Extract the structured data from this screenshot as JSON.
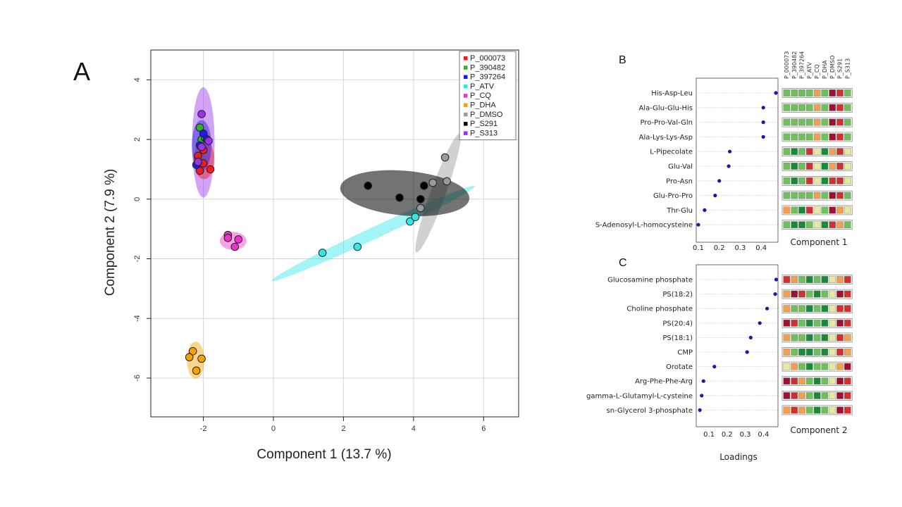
{
  "panels": {
    "a": "A",
    "b": "B",
    "c": "C"
  },
  "colors": {
    "P_000073": "#ee1c1c",
    "P_390482": "#2db32d",
    "P_397264": "#1c1cee",
    "P_ATV": "#33e6e6",
    "P_CQ": "#ee33cc",
    "P_DHA": "#f5a300",
    "P_DMSO": "#9a9a9a",
    "P_S291": "#000000",
    "P_S313": "#9b33ee",
    "heat_dark_green": "#1a8a3a",
    "heat_green": "#6fbf5a",
    "heat_light": "#e8e8a0",
    "heat_orange": "#f0a050",
    "heat_red": "#d03030",
    "heat_dark_red": "#a01030"
  },
  "chart_data": [
    {
      "type": "scatter",
      "xlabel": "Component 1 (13.7 %)",
      "ylabel": "Component 2 (7.9 %)",
      "xlim": [
        -3.5,
        7
      ],
      "ylim": [
        -7.3,
        5
      ],
      "xticks": [
        "-2",
        "0",
        "2",
        "4",
        "6"
      ],
      "xtick_values": [
        -2,
        0,
        2,
        4,
        6
      ],
      "yticks": [
        "4",
        "2",
        "0",
        "-2",
        "-4",
        "-6"
      ],
      "ytick_values": [
        4,
        2,
        0,
        -2,
        -4,
        -6
      ],
      "grid": true,
      "legend_position": "top-right",
      "series": [
        {
          "name": "P_000073",
          "points": [
            [
              -2.0,
              1.2
            ],
            [
              -1.8,
              1.0
            ],
            [
              -2.1,
              0.95
            ],
            [
              -2.15,
              1.45
            ],
            [
              -2.0,
              1.65
            ]
          ]
        },
        {
          "name": "P_390482",
          "points": [
            [
              -2.1,
              2.4
            ],
            [
              -2.05,
              2.0
            ],
            [
              -1.95,
              2.05
            ]
          ]
        },
        {
          "name": "P_397264",
          "points": [
            [
              -2.0,
              2.2
            ],
            [
              -1.9,
              2.0
            ],
            [
              -2.1,
              1.8
            ],
            [
              -2.2,
              1.15
            ]
          ]
        },
        {
          "name": "P_ATV",
          "points": [
            [
              1.4,
              -1.8
            ],
            [
              2.4,
              -1.6
            ],
            [
              3.9,
              -0.75
            ],
            [
              4.05,
              -0.6
            ]
          ]
        },
        {
          "name": "P_CQ",
          "points": [
            [
              -1.3,
              -1.2
            ],
            [
              -1.3,
              -1.3
            ],
            [
              -1.0,
              -1.35
            ],
            [
              -1.1,
              -1.6
            ]
          ]
        },
        {
          "name": "P_DHA",
          "points": [
            [
              -2.3,
              -5.1
            ],
            [
              -2.4,
              -5.3
            ],
            [
              -2.05,
              -5.35
            ],
            [
              -2.2,
              -5.75
            ]
          ]
        },
        {
          "name": "P_DMSO",
          "points": [
            [
              4.9,
              1.4
            ],
            [
              4.55,
              0.55
            ],
            [
              4.95,
              0.6
            ],
            [
              4.2,
              -0.3
            ]
          ]
        },
        {
          "name": "P_S291",
          "points": [
            [
              2.7,
              0.45
            ],
            [
              3.6,
              0.05
            ],
            [
              4.2,
              0.0
            ],
            [
              4.3,
              0.45
            ]
          ]
        },
        {
          "name": "P_S313",
          "points": [
            [
              -2.05,
              2.85
            ],
            [
              -1.85,
              1.95
            ],
            [
              -2.05,
              1.75
            ],
            [
              -2.15,
              1.25
            ]
          ]
        }
      ],
      "ellipses": [
        {
          "series": "P_S313",
          "cx": -2.0,
          "cy": 1.9,
          "rx": 0.32,
          "ry": 1.85,
          "angle": 0
        },
        {
          "series": "P_000073",
          "cx": -1.98,
          "cy": 1.32,
          "rx": 0.3,
          "ry": 0.65,
          "angle": 0
        },
        {
          "series": "P_397264",
          "cx": -2.05,
          "cy": 1.8,
          "rx": 0.28,
          "ry": 0.85,
          "angle": 0
        },
        {
          "series": "P_ATV",
          "cx": 2.85,
          "cy": -1.15,
          "rx": 3.2,
          "ry": 0.2,
          "angle": 25
        },
        {
          "series": "P_DMSO",
          "cx": 4.7,
          "cy": 0.2,
          "rx": 1.8,
          "ry": 0.25,
          "angle": 70
        },
        {
          "series": "P_S291",
          "cx": 3.75,
          "cy": 0.2,
          "rx": 1.85,
          "ry": 0.75,
          "angle": -5
        },
        {
          "series": "P_CQ",
          "cx": -1.15,
          "cy": -1.4,
          "rx": 0.38,
          "ry": 0.3,
          "angle": 0
        },
        {
          "series": "P_DHA",
          "cx": -2.22,
          "cy": -5.4,
          "rx": 0.25,
          "ry": 0.62,
          "angle": 0
        }
      ]
    },
    {
      "type": "scatter",
      "panel": "B",
      "title": "Component 1",
      "xticks": [
        "0.1",
        "0.2",
        "0.3",
        "0.4"
      ],
      "xtick_values": [
        0.1,
        0.2,
        0.3,
        0.4
      ],
      "xlim": [
        0.09,
        0.48
      ],
      "categories": [
        "His-Asp-Leu",
        "Ala-Glu-Glu-His",
        "Pro-Pro-Val-Gln",
        "Ala-Lys-Lys-Asp",
        "L-Pipecolate",
        "Glu-Val",
        "Pro-Asn",
        "Glu-Pro-Pro",
        "Thr-Glu",
        "S-Adenosyl-L-homocysteine"
      ],
      "values": [
        0.47,
        0.41,
        0.41,
        0.41,
        0.25,
        0.245,
        0.2,
        0.18,
        0.13,
        0.1
      ],
      "heatmap_columns": [
        "P_000073",
        "P_390482",
        "P_397264",
        "P_ATV",
        "P_CQ",
        "P_DHA",
        "P_DMSO",
        "P_S291",
        "P_S313"
      ],
      "heatmap_levels": [
        [
          1,
          1,
          1,
          1,
          3,
          1,
          5,
          4,
          1
        ],
        [
          1,
          1,
          1,
          1,
          3,
          1,
          5,
          4,
          1
        ],
        [
          1,
          1,
          1,
          1,
          3,
          1,
          5,
          4,
          1
        ],
        [
          1,
          1,
          1,
          1,
          3,
          1,
          5,
          4,
          1
        ],
        [
          1,
          0,
          1,
          4,
          2,
          0,
          3,
          4,
          2
        ],
        [
          1,
          0,
          1,
          4,
          2,
          0,
          3,
          4,
          2
        ],
        [
          1,
          0,
          1,
          4,
          2,
          0,
          4,
          4,
          2
        ],
        [
          1,
          1,
          1,
          1,
          3,
          1,
          5,
          4,
          1
        ],
        [
          3,
          1,
          0,
          4,
          2,
          1,
          5,
          3,
          2
        ],
        [
          1,
          0,
          0,
          1,
          2,
          0,
          4,
          3,
          1
        ]
      ]
    },
    {
      "type": "scatter",
      "panel": "C",
      "title": "Component 2",
      "xlabel": "Loadings",
      "xticks": [
        "0.1",
        "0.2",
        "0.3",
        "0.4"
      ],
      "xtick_values": [
        0.1,
        0.2,
        0.3,
        0.4
      ],
      "xlim": [
        0.03,
        0.48
      ],
      "categories": [
        "Glucosamine phosphate",
        "PS(18:2)",
        "Choline phosphate",
        "PS(20:4)",
        "PS(18:1)",
        "CMP",
        "Orotate",
        "Arg-Phe-Phe-Arg",
        "gamma-L-Glutamyl-L-cysteine",
        "sn-Glycerol 3-phosphate"
      ],
      "values": [
        0.47,
        0.465,
        0.42,
        0.38,
        0.33,
        0.31,
        0.13,
        0.07,
        0.06,
        0.05
      ],
      "heatmap_levels": [
        [
          4,
          3,
          1,
          0,
          1,
          0,
          2,
          3,
          4
        ],
        [
          3,
          5,
          4,
          1,
          0,
          1,
          2,
          5,
          4
        ],
        [
          3,
          1,
          1,
          0,
          1,
          0,
          2,
          4,
          4
        ],
        [
          5,
          4,
          1,
          0,
          1,
          0,
          2,
          5,
          4
        ],
        [
          3,
          1,
          1,
          0,
          1,
          0,
          2,
          4,
          3
        ],
        [
          3,
          1,
          0,
          0,
          1,
          0,
          2,
          4,
          3
        ],
        [
          2,
          3,
          1,
          0,
          1,
          1,
          2,
          3,
          5
        ],
        [
          5,
          4,
          3,
          1,
          0,
          1,
          2,
          5,
          4
        ],
        [
          5,
          4,
          3,
          1,
          0,
          1,
          2,
          5,
          4
        ],
        [
          3,
          4,
          3,
          1,
          0,
          1,
          2,
          5,
          4
        ]
      ]
    }
  ]
}
